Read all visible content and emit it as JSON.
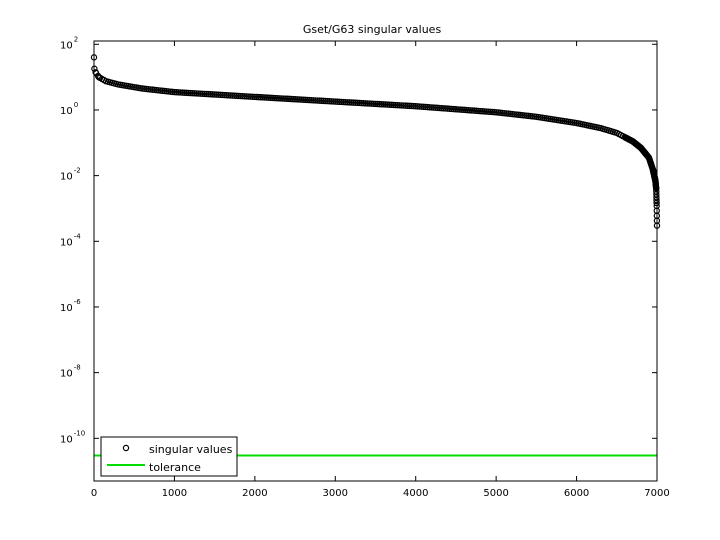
{
  "chart_data": {
    "type": "scatter",
    "title": "Gset/G63 singular values",
    "xlabel": "",
    "ylabel": "",
    "xlim": [
      0,
      7000
    ],
    "ylim_log10": [
      -11.3,
      2.1
    ],
    "yscale": "log",
    "x_ticks": [
      0,
      1000,
      2000,
      3000,
      4000,
      5000,
      6000,
      7000
    ],
    "x_tick_labels": [
      "0",
      "1000",
      "2000",
      "3000",
      "4000",
      "5000",
      "6000",
      "7000"
    ],
    "y_ticks": [
      {
        "base": "10",
        "exp": "2",
        "log10": 2
      },
      {
        "base": "10",
        "exp": "0",
        "log10": 0
      },
      {
        "base": "10",
        "exp": "-2",
        "log10": -2
      },
      {
        "base": "10",
        "exp": "-4",
        "log10": -4
      },
      {
        "base": "10",
        "exp": "-6",
        "log10": -6
      },
      {
        "base": "10",
        "exp": "-8",
        "log10": -8
      },
      {
        "base": "10",
        "exp": "-10",
        "log10": -10
      }
    ],
    "grid": false,
    "legend_position": "bottom-left",
    "series": [
      {
        "name": "singular values",
        "marker": "circle",
        "color": "#000000",
        "n": 7000,
        "profile": {
          "x": [
            0,
            5,
            20,
            60,
            150,
            300,
            600,
            1000,
            2000,
            3000,
            4000,
            5000,
            5500,
            6000,
            6300,
            6500,
            6700,
            6800,
            6900,
            6950,
            6980,
            6990,
            6996,
            7000
          ],
          "y": [
            40,
            18,
            14,
            10,
            7.5,
            6,
            4.5,
            3.5,
            2.5,
            1.8,
            1.3,
            0.85,
            0.62,
            0.4,
            0.28,
            0.2,
            0.11,
            0.07,
            0.035,
            0.015,
            0.007,
            0.004,
            0.0012,
            0.0003
          ]
        }
      },
      {
        "name": "tolerance",
        "type": "line",
        "color": "#00dd00",
        "y": 3e-11
      }
    ]
  }
}
